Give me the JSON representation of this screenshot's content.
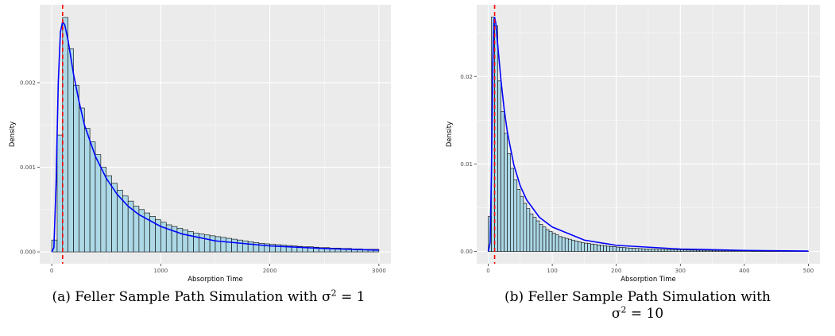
{
  "colors": {
    "bar_fill": "#add8e6",
    "bar_stroke": "#000000",
    "density_line": "#0000ff",
    "mode_line": "#ff0000",
    "panel_bg": "#ebebeb"
  },
  "captions": {
    "a": {
      "text": "(a) Feller Sample Path Simulation with σ",
      "sup": "2",
      "tail": " = 1"
    },
    "b": {
      "line1": "(b) Feller Sample Path Simulation with",
      "sym": "σ",
      "sup": "2",
      "tail": " = 10"
    }
  },
  "chart_data": [
    {
      "type": "bar",
      "subtype": "histogram-with-density",
      "xlabel": "Absorption Time",
      "ylabel": "Density",
      "xlim": [
        -110,
        3110
      ],
      "ylim": [
        -0.00014,
        0.00292
      ],
      "x_ticks": [
        0,
        1000,
        2000,
        3000
      ],
      "x_tick_labels": [
        "0",
        "1000",
        "2000",
        "3000"
      ],
      "y_ticks": [
        0,
        0.001,
        0.002
      ],
      "y_tick_labels": [
        "0.000",
        "0.001",
        "0.002"
      ],
      "grid": true,
      "vline_x": 100,
      "bin_start": 0,
      "bin_width": 50,
      "bin_values": [
        0.00014,
        0.00138,
        0.00277,
        0.0024,
        0.00197,
        0.0017,
        0.00146,
        0.0013,
        0.00115,
        0.001,
        0.0009,
        0.00081,
        0.00073,
        0.00066,
        0.0006,
        0.00054,
        0.0005,
        0.00046,
        0.00042,
        0.00038,
        0.00035,
        0.00032,
        0.0003,
        0.00028,
        0.00026,
        0.00024,
        0.00022,
        0.00021,
        0.0002,
        0.00019,
        0.00018,
        0.00017,
        0.00016,
        0.00015,
        0.00014,
        0.00013,
        0.00012,
        0.00011,
        0.0001,
        9.5e-05,
        9e-05,
        8.5e-05,
        8e-05,
        7.5e-05,
        7e-05,
        6.5e-05,
        6e-05,
        6e-05,
        5.5e-05,
        5e-05,
        5e-05,
        4.5e-05,
        4.5e-05,
        4e-05,
        4e-05,
        3.5e-05,
        3.5e-05,
        3e-05,
        3e-05,
        3e-05
      ],
      "density_x": [
        0,
        20,
        40,
        60,
        80,
        100,
        120,
        150,
        200,
        250,
        300,
        400,
        500,
        600,
        700,
        800,
        1000,
        1200,
        1500,
        2000,
        2500,
        3000
      ],
      "density_y": [
        0,
        5e-05,
        0.0008,
        0.002,
        0.0026,
        0.00272,
        0.00268,
        0.0025,
        0.0021,
        0.00178,
        0.0015,
        0.00113,
        0.00087,
        0.00068,
        0.00054,
        0.00044,
        0.0003,
        0.00021,
        0.00013,
        7e-05,
        4e-05,
        2e-05
      ]
    },
    {
      "type": "bar",
      "subtype": "histogram-with-density",
      "xlabel": "Absorption Time",
      "ylabel": "Density",
      "xlim": [
        -18,
        518
      ],
      "ylim": [
        -0.0014,
        0.0282
      ],
      "x_ticks": [
        0,
        100,
        200,
        300,
        400,
        500
      ],
      "x_tick_labels": [
        "0",
        "100",
        "200",
        "300",
        "400",
        "500"
      ],
      "y_ticks": [
        0,
        0.01,
        0.02
      ],
      "y_tick_labels": [
        "0.00",
        "0.01",
        "0.02"
      ],
      "grid": true,
      "vline_x": 10,
      "bin_start": 0,
      "bin_width": 5,
      "bin_values": [
        0.004,
        0.0268,
        0.0258,
        0.0195,
        0.016,
        0.0135,
        0.0112,
        0.0095,
        0.0082,
        0.0071,
        0.0063,
        0.0055,
        0.0049,
        0.0043,
        0.0039,
        0.0035,
        0.0031,
        0.0028,
        0.0025,
        0.0023,
        0.0021,
        0.0019,
        0.0017,
        0.0016,
        0.0015,
        0.0014,
        0.0013,
        0.0012,
        0.0011,
        0.001,
        0.00095,
        0.0009,
        0.00085,
        0.0008,
        0.00075,
        0.0007,
        0.00065,
        0.0006,
        0.00057,
        0.00054,
        0.0005,
        0.00047,
        0.00044,
        0.00041,
        0.00039,
        0.00037,
        0.00035,
        0.00033,
        0.00031,
        0.0003,
        0.00028,
        0.00027,
        0.00026,
        0.00025,
        0.00024,
        0.00023,
        0.00022,
        0.00021,
        0.0002,
        0.00019,
        0.00018,
        0.00017,
        0.00016,
        0.00015,
        0.00015,
        0.00014,
        0.00014,
        0.00013,
        0.00013,
        0.00012,
        0.00012,
        0.00011,
        0.00011,
        0.0001,
        0.0001,
        0.0001,
        9e-05,
        9e-05,
        9e-05,
        8e-05,
        8e-05,
        8e-05,
        7e-05,
        7e-05,
        7e-05,
        6e-05,
        6e-05,
        6e-05,
        5e-05,
        5e-05,
        5e-05,
        5e-05,
        4e-05,
        4e-05,
        4e-05,
        4e-05,
        4e-05,
        3e-05,
        3e-05,
        3e-05
      ],
      "density_x": [
        0,
        3,
        5,
        7,
        9,
        10,
        12,
        15,
        20,
        25,
        30,
        40,
        50,
        60,
        80,
        100,
        150,
        200,
        300,
        400,
        500
      ],
      "density_y": [
        0,
        0.001,
        0.009,
        0.021,
        0.0265,
        0.0268,
        0.026,
        0.0235,
        0.0195,
        0.0162,
        0.0136,
        0.0099,
        0.0075,
        0.0059,
        0.0039,
        0.0028,
        0.0013,
        0.0007,
        0.00028,
        0.00012,
        5e-05
      ]
    }
  ]
}
